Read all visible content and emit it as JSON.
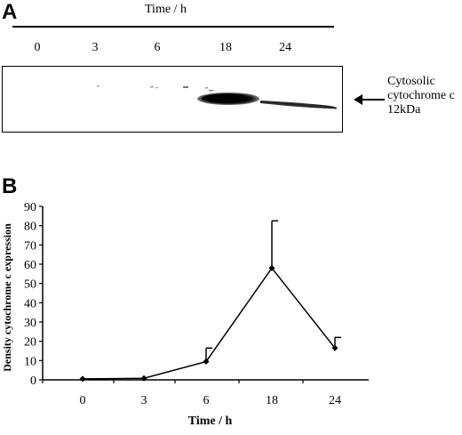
{
  "panel_a": {
    "letter": "A",
    "title": "Time / h",
    "lanes": [
      "0",
      "3",
      "6",
      "18",
      "24"
    ],
    "band_label_lines": [
      "Cytosolic",
      "cytochrome c",
      "12kDa"
    ]
  },
  "panel_b": {
    "letter": "B"
  },
  "chart_data": {
    "type": "line",
    "title": "",
    "xlabel": "Time / h",
    "ylabel": "Density cytochrome c expression",
    "categories": [
      "0",
      "3",
      "6",
      "18",
      "24"
    ],
    "series": [
      {
        "values": [
          0.5,
          0.8,
          9.5,
          58,
          16.5
        ],
        "error_upper": [
          0,
          0,
          7,
          24.5,
          5.5
        ]
      }
    ],
    "ylim": [
      0,
      90
    ],
    "yticks": [
      0,
      10,
      20,
      30,
      40,
      50,
      60,
      70,
      80,
      90
    ],
    "grid": false,
    "legend": "none",
    "color": "#000000"
  }
}
